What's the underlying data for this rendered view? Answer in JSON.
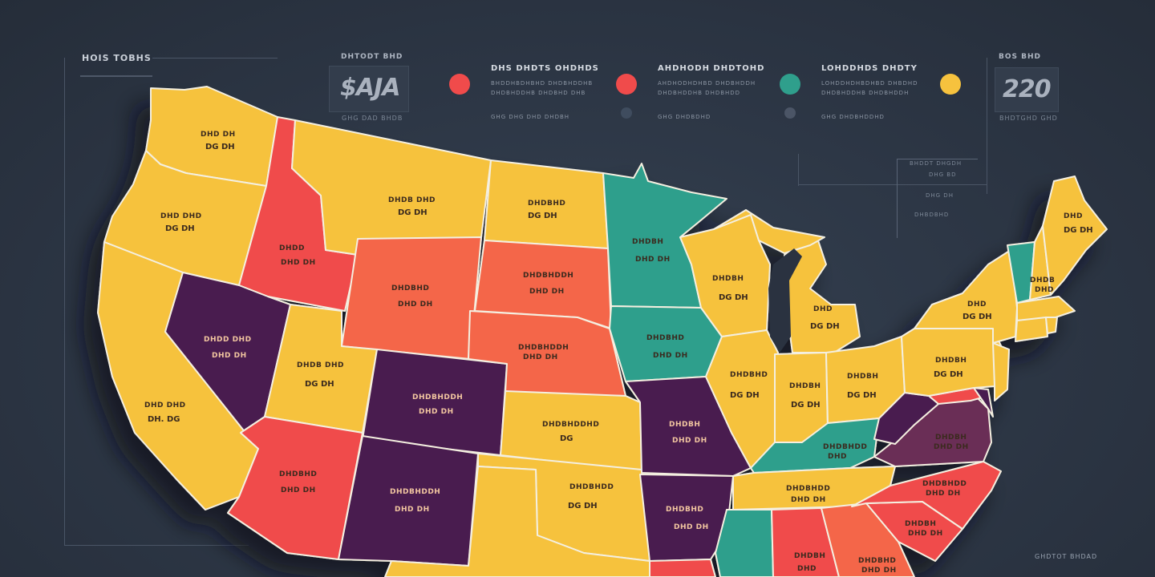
{
  "header": {
    "title": "HOIS TOBHS",
    "stat_left": {
      "label": "DHTODT BHD",
      "value": "$AJA",
      "caption": "GHG DAD BHDB"
    },
    "stat_right": {
      "label": "BOS BHD",
      "value": "220",
      "caption": "BHDTGHD GHD"
    },
    "side_note": {
      "line1": "BHDDT DHGDH",
      "line2": "DHG BD",
      "line3": "DHG DH",
      "line4": "DHBDBHD"
    },
    "bottom_right": "GHDTOT BHDAD"
  },
  "legend": [
    {
      "title": "DHS DHDTS OHDHDS",
      "line1": "BHDDHBDHBHD DHDBHDDHB",
      "line2": "DHDBHDDHB DHDBHD DHB",
      "foot": "GHG DHG DHD DHDBH",
      "color": "#f04b4b"
    },
    {
      "title": "AHDHODH DHDTOHD",
      "line1": "AHDHODHDHBD DHDBHDDH",
      "line2": "DHDBHDDHB DHDBHDD",
      "foot": "GHG DHDBDHD",
      "color": "#f04b4b"
    },
    {
      "title": "LOHDDHDS DHDTY",
      "line1": "LOHDDHDHBDHBD DHBDHD",
      "line2": "DHDBHDDHB DHDBHDDH",
      "foot": "GHG DHDBHDDHD",
      "color": "#2f9f8c"
    },
    {
      "title": "",
      "line1": "",
      "line2": "",
      "foot": "",
      "color": "#f6c23e"
    }
  ],
  "colors": {
    "yellow": "#f6c23e",
    "red": "#f04b4b",
    "orange": "#f4664a",
    "purple": "#4a1d4f",
    "teal": "#2f9f8c",
    "wine": "#6b2d57"
  },
  "states": {
    "wa": {
      "l1": "DHD DH",
      "l2": "DG DH"
    },
    "or": {
      "l1": "DHD DHD",
      "l2": "DG DH"
    },
    "ca": {
      "l1": "DHD DHD",
      "l2": "DH. DG"
    },
    "id": {
      "l1": "DHDD",
      "l2": "DHD DH"
    },
    "nv": {
      "l1": "DHDD DHD",
      "l2": "DHD DH"
    },
    "mt": {
      "l1": "DHDB DHD",
      "l2": "DG DH"
    },
    "wy": {
      "l1": "DHDBHD",
      "l2": "DHD DH"
    },
    "ut": {
      "l1": "DHDB DHD",
      "l2": "DG DH"
    },
    "co": {
      "l1": "DHDBHDDH",
      "l2": "DHD DH"
    },
    "az": {
      "l1": "DHDBHD",
      "l2": "DHD DH"
    },
    "nm": {
      "l1": "DHDBHDDH",
      "l2": "DHD DH"
    },
    "nd": {
      "l1": "DHDBHD",
      "l2": "DG DH"
    },
    "sd": {
      "l1": "DHDBHDDH",
      "l2": "DHD DH"
    },
    "ne": {
      "l1": "DHDBHDDH",
      "l2": "DHD DH"
    },
    "ks": {
      "l1": "DHDBHDDHD",
      "l2": "DG"
    },
    "ok": {
      "l1": "DHDBHDD",
      "l2": "DG DH"
    },
    "mn": {
      "l1": "DHDBH",
      "l2": "DHD DH"
    },
    "ia": {
      "l1": "DHDBHD",
      "l2": "DHD DH"
    },
    "mo": {
      "l1": "DHDBH",
      "l2": "DHD DH"
    },
    "ar": {
      "l1": "DHDBHD",
      "l2": "DHD DH"
    },
    "wi": {
      "l1": "DHDBH",
      "l2": "DG DH"
    },
    "il": {
      "l1": "DHDBHD",
      "l2": "DG DH"
    },
    "mi": {
      "l1": "DHD",
      "l2": "DG DH"
    },
    "in": {
      "l1": "DHDBH",
      "l2": "DG DH"
    },
    "oh": {
      "l1": "DHDBH",
      "l2": "DG DH"
    },
    "ky": {
      "l1": "DHDBHDD",
      "l2": "DHD"
    },
    "tn": {
      "l1": "DHDBHDD",
      "l2": "DHD DH"
    },
    "ny": {
      "l1": "DHD",
      "l2": "DG DH"
    },
    "pa": {
      "l1": "DHDBH",
      "l2": "DG DH"
    },
    "va": {
      "l1": "DHDBH",
      "l2": "DHD DH"
    },
    "nc": {
      "l1": "DHDBHDD",
      "l2": "DHD DH"
    },
    "sc": {
      "l1": "DHDBH",
      "l2": "DHD DH"
    },
    "ga": {
      "l1": "DHDBHD",
      "l2": "DHD DH"
    },
    "al": {
      "l1": "DHDBH",
      "l2": "DHD"
    },
    "me": {
      "l1": "DHD",
      "l2": "DG DH"
    },
    "vt": {
      "l1": "DHDB",
      "l2": "DHD"
    }
  }
}
